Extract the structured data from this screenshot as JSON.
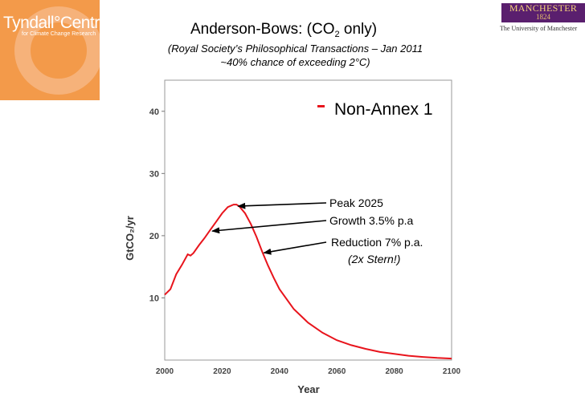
{
  "logos": {
    "tyndall_name": "Tyndall°Centre",
    "tyndall_sub": "for Climate Change Research",
    "manchester_word": "MANCHESTER",
    "manchester_year": "1824",
    "manchester_sub": "The University of Manchester"
  },
  "title": {
    "main": "Anderson-Bows: (CO",
    "sub": "2",
    "end": " only)"
  },
  "subtitle_line1": "(Royal Society’s Philosophical Transactions – Jan 2011",
  "subtitle_line2": "~40% chance of exceeding 2°C)",
  "chart_data": {
    "type": "line",
    "title": "",
    "xlabel": "Year",
    "ylabel": "GtCO₂/yr",
    "xlim": [
      2000,
      2100
    ],
    "ylim": [
      0,
      45
    ],
    "x_ticks": [
      2000,
      2020,
      2040,
      2060,
      2080,
      2100
    ],
    "y_ticks": [
      10,
      20,
      30,
      40
    ],
    "legend": {
      "label": "Non-Annex 1",
      "color": "#e8141c",
      "position": "top-right"
    },
    "series": [
      {
        "name": "Non-Annex 1",
        "color": "#e8141c",
        "x": [
          2000,
          2002,
          2004,
          2006,
          2008,
          2009,
          2010,
          2012,
          2014,
          2016,
          2018,
          2020,
          2022,
          2024,
          2025,
          2026,
          2028,
          2030,
          2032,
          2034,
          2036,
          2038,
          2040,
          2045,
          2050,
          2055,
          2060,
          2065,
          2070,
          2075,
          2080,
          2085,
          2090,
          2095,
          2100
        ],
        "y": [
          10.5,
          11.4,
          13.8,
          15.3,
          17.0,
          16.8,
          17.2,
          18.5,
          19.7,
          21.0,
          22.3,
          23.6,
          24.6,
          25.0,
          25.0,
          24.7,
          23.6,
          21.9,
          19.8,
          17.4,
          15.2,
          13.2,
          11.4,
          8.2,
          6.0,
          4.4,
          3.2,
          2.4,
          1.8,
          1.3,
          1.0,
          0.7,
          0.5,
          0.35,
          0.25
        ]
      }
    ],
    "annotations": [
      {
        "text": "Peak 2025",
        "x": 2025,
        "y": 25
      },
      {
        "text": "Growth 3.5% p.a",
        "x": 2016,
        "y": 21
      },
      {
        "text": "Reduction 7% p.a.",
        "x": 2034,
        "y": 17.5
      },
      {
        "text": "(2x Stern!)"
      }
    ]
  }
}
